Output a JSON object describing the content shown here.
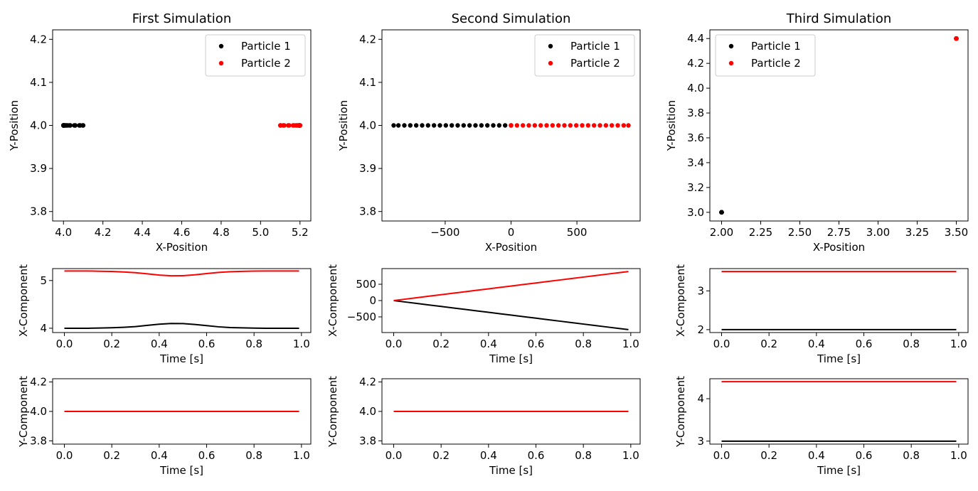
{
  "chart_data": [
    {
      "type": "scatter",
      "title": "First Simulation",
      "xlabel": "X-Position",
      "ylabel": "Y-Position",
      "xlim": [
        3.945,
        5.255
      ],
      "ylim": [
        3.778,
        4.222
      ],
      "xticks": [
        {
          "value": 4,
          "label": "4.0"
        },
        4.2,
        4.4,
        4.6,
        4.8,
        {
          "value": 5,
          "label": "5.0"
        },
        5.2
      ],
      "yticks": [
        3.8,
        3.9,
        {
          "value": 4,
          "label": "4.0"
        },
        4.1,
        4.2
      ],
      "legend": "upper right",
      "series": [
        {
          "name": "Particle 1",
          "color": "black",
          "x": [
            4.0,
            4.0,
            4.0,
            4.005,
            4.01,
            4.02,
            4.035,
            4.06,
            4.085,
            4.1,
            4.098,
            4.08,
            4.055,
            4.03,
            4.015,
            4.008,
            4.003,
            4.0,
            4.0,
            4.0,
            4.0
          ],
          "values": [
            4,
            4,
            4,
            4,
            4,
            4,
            4,
            4,
            4,
            4,
            4,
            4,
            4,
            4,
            4,
            4,
            4,
            4,
            4,
            4,
            4
          ]
        },
        {
          "name": "Particle 2",
          "color": "red",
          "x": [
            5.2,
            5.2,
            5.2,
            5.195,
            5.19,
            5.18,
            5.165,
            5.14,
            5.115,
            5.1,
            5.102,
            5.12,
            5.145,
            5.17,
            5.185,
            5.192,
            5.197,
            5.2,
            5.2,
            5.2,
            5.2
          ],
          "values": [
            4,
            4,
            4,
            4,
            4,
            4,
            4,
            4,
            4,
            4,
            4,
            4,
            4,
            4,
            4,
            4,
            4,
            4,
            4,
            4,
            4
          ]
        }
      ]
    },
    {
      "type": "scatter",
      "title": "Second Simulation",
      "xlabel": "X-Position",
      "ylabel": "Y-Position",
      "xlim": [
        -980,
        980
      ],
      "ylim": [
        3.778,
        4.222
      ],
      "xticks": [
        {
          "value": -500,
          "label": "−500"
        },
        0,
        500
      ],
      "yticks": [
        3.8,
        3.9,
        {
          "value": 4,
          "label": "4.0"
        },
        4.1,
        4.2
      ],
      "legend": "upper right",
      "series": [
        {
          "name": "Particle 1",
          "color": "black",
          "x": [
            0,
            -45,
            -90,
            -135,
            -180,
            -225,
            -270,
            -315,
            -360,
            -405,
            -450,
            -495,
            -540,
            -585,
            -630,
            -675,
            -720,
            -765,
            -810,
            -855,
            -891
          ],
          "values": [
            4,
            4,
            4,
            4,
            4,
            4,
            4,
            4,
            4,
            4,
            4,
            4,
            4,
            4,
            4,
            4,
            4,
            4,
            4,
            4,
            4
          ]
        },
        {
          "name": "Particle 2",
          "color": "red",
          "x": [
            0,
            45,
            90,
            135,
            180,
            225,
            270,
            315,
            360,
            405,
            450,
            495,
            540,
            585,
            630,
            675,
            720,
            765,
            810,
            855,
            891
          ],
          "values": [
            4,
            4,
            4,
            4,
            4,
            4,
            4,
            4,
            4,
            4,
            4,
            4,
            4,
            4,
            4,
            4,
            4,
            4,
            4,
            4,
            4
          ]
        }
      ]
    },
    {
      "type": "scatter",
      "title": "Third Simulation",
      "xlabel": "X-Position",
      "ylabel": "Y-Position",
      "xlim": [
        1.925,
        3.575
      ],
      "ylim": [
        2.93,
        4.47
      ],
      "xticks": [
        {
          "value": 2,
          "label": "2.00"
        },
        {
          "value": 2.25,
          "label": "2.25"
        },
        {
          "value": 2.5,
          "label": "2.50"
        },
        {
          "value": 2.75,
          "label": "2.75"
        },
        {
          "value": 3,
          "label": "3.00"
        },
        {
          "value": 3.25,
          "label": "3.25"
        },
        {
          "value": 3.5,
          "label": "3.50"
        }
      ],
      "yticks": [
        {
          "value": 3,
          "label": "3.0"
        },
        3.2,
        3.4,
        3.6,
        3.8,
        {
          "value": 4,
          "label": "4.0"
        },
        4.2,
        4.4
      ],
      "legend": "upper left",
      "series": [
        {
          "name": "Particle 1",
          "color": "black",
          "x": [
            2,
            2,
            2,
            2,
            2,
            2,
            2,
            2,
            2,
            2,
            2,
            2,
            2,
            2,
            2,
            2,
            2,
            2,
            2,
            2,
            2
          ],
          "values": [
            3,
            3,
            3,
            3,
            3,
            3,
            3,
            3,
            3,
            3,
            3,
            3,
            3,
            3,
            3,
            3,
            3,
            3,
            3,
            3,
            3
          ]
        },
        {
          "name": "Particle 2",
          "color": "red",
          "x": [
            3.5,
            3.5,
            3.5,
            3.5,
            3.5,
            3.5,
            3.5,
            3.5,
            3.5,
            3.5,
            3.5,
            3.5,
            3.5,
            3.5,
            3.5,
            3.5,
            3.5,
            3.5,
            3.5,
            3.5,
            3.5
          ],
          "values": [
            4.4,
            4.4,
            4.4,
            4.4,
            4.4,
            4.4,
            4.4,
            4.4,
            4.4,
            4.4,
            4.4,
            4.4,
            4.4,
            4.4,
            4.4,
            4.4,
            4.4,
            4.4,
            4.4,
            4.4,
            4.4
          ]
        }
      ]
    },
    {
      "type": "line",
      "xlabel": "Time [s]",
      "ylabel": "X-Component",
      "x": [
        0,
        0.05,
        0.1,
        0.15,
        0.2,
        0.25,
        0.3,
        0.35,
        0.4,
        0.45,
        0.5,
        0.55,
        0.6,
        0.65,
        0.7,
        0.75,
        0.8,
        0.85,
        0.9,
        0.95,
        0.99
      ],
      "xlim": [
        -0.0495,
        1.0395
      ],
      "ylim": [
        3.91,
        5.25
      ],
      "xticks": [
        {
          "value": 0,
          "label": "0.0"
        },
        0.2,
        0.4,
        0.6,
        0.8,
        {
          "value": 1,
          "label": "1.0"
        }
      ],
      "yticks": [
        4,
        5
      ],
      "series": [
        {
          "color": "black",
          "values": [
            4.0,
            4.0,
            4.0,
            4.005,
            4.01,
            4.02,
            4.035,
            4.06,
            4.085,
            4.1,
            4.098,
            4.08,
            4.055,
            4.03,
            4.015,
            4.008,
            4.003,
            4.0,
            4.0,
            4.0,
            4.0
          ]
        },
        {
          "color": "red",
          "values": [
            5.2,
            5.2,
            5.2,
            5.195,
            5.19,
            5.18,
            5.165,
            5.14,
            5.115,
            5.1,
            5.102,
            5.12,
            5.145,
            5.17,
            5.185,
            5.192,
            5.197,
            5.2,
            5.2,
            5.2,
            5.2
          ]
        }
      ]
    },
    {
      "type": "line",
      "xlabel": "Time [s]",
      "ylabel": "X-Component",
      "x": [
        0,
        0.05,
        0.1,
        0.15,
        0.2,
        0.25,
        0.3,
        0.35,
        0.4,
        0.45,
        0.5,
        0.55,
        0.6,
        0.65,
        0.7,
        0.75,
        0.8,
        0.85,
        0.9,
        0.95,
        0.99
      ],
      "xlim": [
        -0.0495,
        1.0395
      ],
      "ylim": [
        -980,
        980
      ],
      "xticks": [
        {
          "value": 0,
          "label": "0.0"
        },
        0.2,
        0.4,
        0.6,
        0.8,
        {
          "value": 1,
          "label": "1.0"
        }
      ],
      "yticks": [
        {
          "value": -500,
          "label": "−500"
        },
        0,
        500
      ],
      "series": [
        {
          "color": "black",
          "values": [
            0,
            -45,
            -90,
            -135,
            -180,
            -225,
            -270,
            -315,
            -360,
            -405,
            -450,
            -495,
            -540,
            -585,
            -630,
            -675,
            -720,
            -765,
            -810,
            -855,
            -891
          ]
        },
        {
          "color": "red",
          "values": [
            0,
            45,
            90,
            135,
            180,
            225,
            270,
            315,
            360,
            405,
            450,
            495,
            540,
            585,
            630,
            675,
            720,
            765,
            810,
            855,
            891
          ]
        }
      ]
    },
    {
      "type": "line",
      "xlabel": "Time [s]",
      "ylabel": "X-Component",
      "x": [
        0,
        0.05,
        0.1,
        0.15,
        0.2,
        0.25,
        0.3,
        0.35,
        0.4,
        0.45,
        0.5,
        0.55,
        0.6,
        0.65,
        0.7,
        0.75,
        0.8,
        0.85,
        0.9,
        0.95,
        0.99
      ],
      "xlim": [
        -0.0495,
        1.0395
      ],
      "ylim": [
        1.925,
        3.575
      ],
      "xticks": [
        {
          "value": 0,
          "label": "0.0"
        },
        0.2,
        0.4,
        0.6,
        0.8,
        {
          "value": 1,
          "label": "1.0"
        }
      ],
      "yticks": [
        2,
        3
      ],
      "series": [
        {
          "color": "black",
          "values": [
            2,
            2,
            2,
            2,
            2,
            2,
            2,
            2,
            2,
            2,
            2,
            2,
            2,
            2,
            2,
            2,
            2,
            2,
            2,
            2,
            2
          ]
        },
        {
          "color": "red",
          "values": [
            3.5,
            3.5,
            3.5,
            3.5,
            3.5,
            3.5,
            3.5,
            3.5,
            3.5,
            3.5,
            3.5,
            3.5,
            3.5,
            3.5,
            3.5,
            3.5,
            3.5,
            3.5,
            3.5,
            3.5,
            3.5
          ]
        }
      ]
    },
    {
      "type": "line",
      "xlabel": "Time [s]",
      "ylabel": "Y-Component",
      "x": [
        0,
        0.05,
        0.1,
        0.15,
        0.2,
        0.25,
        0.3,
        0.35,
        0.4,
        0.45,
        0.5,
        0.55,
        0.6,
        0.65,
        0.7,
        0.75,
        0.8,
        0.85,
        0.9,
        0.95,
        0.99
      ],
      "xlim": [
        -0.0495,
        1.0395
      ],
      "ylim": [
        3.778,
        4.222
      ],
      "xticks": [
        {
          "value": 0,
          "label": "0.0"
        },
        0.2,
        0.4,
        0.6,
        0.8,
        {
          "value": 1,
          "label": "1.0"
        }
      ],
      "yticks": [
        3.8,
        {
          "value": 4,
          "label": "4.0"
        },
        4.2
      ],
      "series": [
        {
          "color": "black",
          "values": [
            4,
            4,
            4,
            4,
            4,
            4,
            4,
            4,
            4,
            4,
            4,
            4,
            4,
            4,
            4,
            4,
            4,
            4,
            4,
            4,
            4
          ]
        },
        {
          "color": "red",
          "values": [
            4,
            4,
            4,
            4,
            4,
            4,
            4,
            4,
            4,
            4,
            4,
            4,
            4,
            4,
            4,
            4,
            4,
            4,
            4,
            4,
            4
          ]
        }
      ]
    },
    {
      "type": "line",
      "xlabel": "Time [s]",
      "ylabel": "Y-Component",
      "x": [
        0,
        0.05,
        0.1,
        0.15,
        0.2,
        0.25,
        0.3,
        0.35,
        0.4,
        0.45,
        0.5,
        0.55,
        0.6,
        0.65,
        0.7,
        0.75,
        0.8,
        0.85,
        0.9,
        0.95,
        0.99
      ],
      "xlim": [
        -0.0495,
        1.0395
      ],
      "ylim": [
        3.778,
        4.222
      ],
      "xticks": [
        {
          "value": 0,
          "label": "0.0"
        },
        0.2,
        0.4,
        0.6,
        0.8,
        {
          "value": 1,
          "label": "1.0"
        }
      ],
      "yticks": [
        3.8,
        {
          "value": 4,
          "label": "4.0"
        },
        4.2
      ],
      "series": [
        {
          "color": "black",
          "values": [
            4,
            4,
            4,
            4,
            4,
            4,
            4,
            4,
            4,
            4,
            4,
            4,
            4,
            4,
            4,
            4,
            4,
            4,
            4,
            4,
            4
          ]
        },
        {
          "color": "red",
          "values": [
            4,
            4,
            4,
            4,
            4,
            4,
            4,
            4,
            4,
            4,
            4,
            4,
            4,
            4,
            4,
            4,
            4,
            4,
            4,
            4,
            4
          ]
        }
      ]
    },
    {
      "type": "line",
      "xlabel": "Time [s]",
      "ylabel": "Y-Component",
      "x": [
        0,
        0.05,
        0.1,
        0.15,
        0.2,
        0.25,
        0.3,
        0.35,
        0.4,
        0.45,
        0.5,
        0.55,
        0.6,
        0.65,
        0.7,
        0.75,
        0.8,
        0.85,
        0.9,
        0.95,
        0.99
      ],
      "xlim": [
        -0.0495,
        1.0395
      ],
      "ylim": [
        2.93,
        4.47
      ],
      "xticks": [
        {
          "value": 0,
          "label": "0.0"
        },
        0.2,
        0.4,
        0.6,
        0.8,
        {
          "value": 1,
          "label": "1.0"
        }
      ],
      "yticks": [
        3,
        4
      ],
      "series": [
        {
          "color": "black",
          "values": [
            3,
            3,
            3,
            3,
            3,
            3,
            3,
            3,
            3,
            3,
            3,
            3,
            3,
            3,
            3,
            3,
            3,
            3,
            3,
            3,
            3
          ]
        },
        {
          "color": "red",
          "values": [
            4.4,
            4.4,
            4.4,
            4.4,
            4.4,
            4.4,
            4.4,
            4.4,
            4.4,
            4.4,
            4.4,
            4.4,
            4.4,
            4.4,
            4.4,
            4.4,
            4.4,
            4.4,
            4.4,
            4.4,
            4.4
          ]
        }
      ]
    }
  ]
}
